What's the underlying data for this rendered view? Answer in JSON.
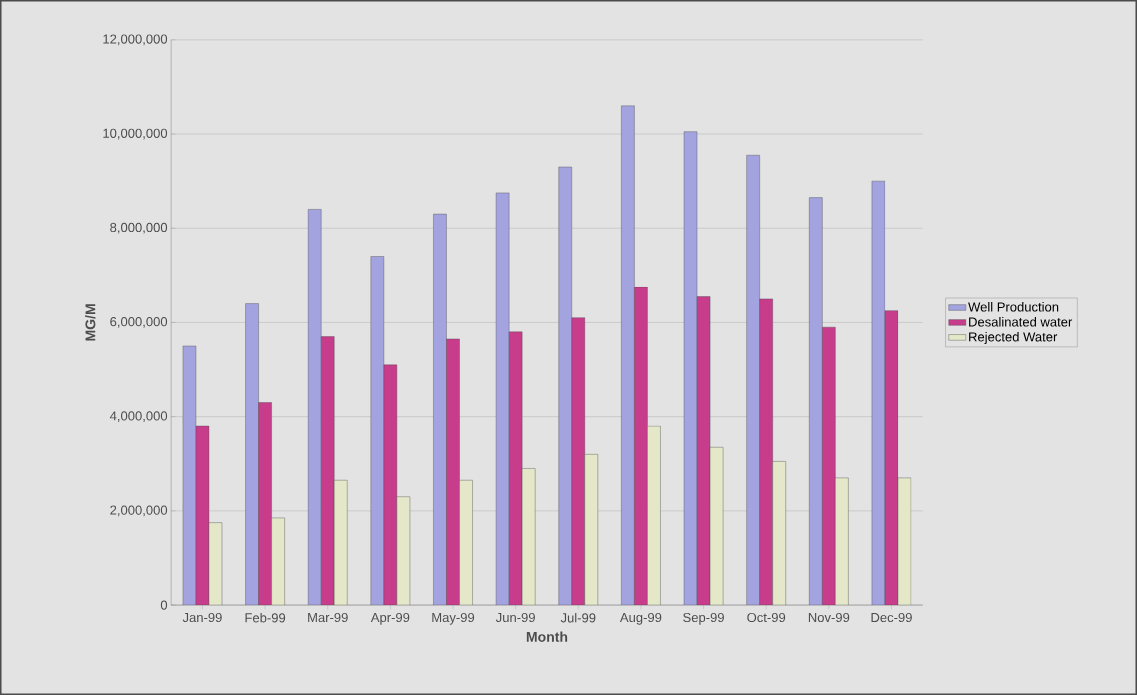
{
  "chart_data": {
    "type": "bar",
    "xlabel": "Month",
    "ylabel": "MG/M",
    "categories": [
      "Jan-99",
      "Feb-99",
      "Mar-99",
      "Apr-99",
      "May-99",
      "Jun-99",
      "Jul-99",
      "Aug-99",
      "Sep-99",
      "Oct-99",
      "Nov-99",
      "Dec-99"
    ],
    "series": [
      {
        "name": "Well Production",
        "color": "#a3a3e0",
        "values": [
          5500000,
          6400000,
          8400000,
          7400000,
          8300000,
          8750000,
          9300000,
          10600000,
          10050000,
          9550000,
          8650000,
          9000000
        ]
      },
      {
        "name": "Desalinated water",
        "color": "#c83c8c",
        "values": [
          3800000,
          4300000,
          5700000,
          5100000,
          5650000,
          5800000,
          6100000,
          6750000,
          6550000,
          6500000,
          5900000,
          6250000
        ]
      },
      {
        "name": "Rejected Water",
        "color": "#e4e8c8",
        "values": [
          1750000,
          1850000,
          2650000,
          2300000,
          2650000,
          2900000,
          3200000,
          3800000,
          3350000,
          3050000,
          2700000,
          2700000
        ]
      }
    ],
    "ylim": [
      0,
      12000000
    ],
    "yticks": [
      {
        "value": 0,
        "label": "0"
      },
      {
        "value": 2000000,
        "label": "2,000,000"
      },
      {
        "value": 4000000,
        "label": "4,000,000"
      },
      {
        "value": 6000000,
        "label": "6,000,000"
      },
      {
        "value": 8000000,
        "label": "8,000,000"
      },
      {
        "value": 10000000,
        "label": "10,000,000"
      },
      {
        "value": 12000000,
        "label": "12,000,000"
      }
    ],
    "grid": "y",
    "legend": "right"
  }
}
